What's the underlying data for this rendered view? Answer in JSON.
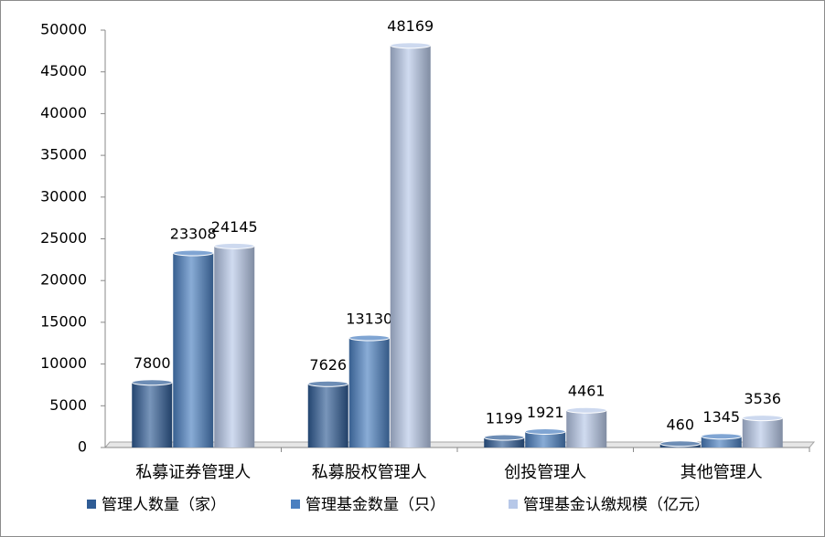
{
  "chart_data": {
    "type": "bar",
    "categories": [
      "私募证券管理人",
      "私募股权管理人",
      "创投管理人",
      "其他管理人"
    ],
    "series": [
      {
        "name": "管理人数量（家）",
        "color": "#2f5c95",
        "values": [
          7800,
          7626,
          1199,
          460
        ]
      },
      {
        "name": "管理基金数量（只）",
        "color": "#4a7fc0",
        "values": [
          23308,
          13130,
          1921,
          1345
        ]
      },
      {
        "name": "管理基金认缴规模（亿元）",
        "color": "#b7c8e8",
        "values": [
          24145,
          48169,
          4461,
          3536
        ]
      }
    ],
    "ylim": [
      0,
      50000
    ],
    "yticks": [
      0,
      5000,
      10000,
      15000,
      20000,
      25000,
      30000,
      35000,
      40000,
      45000,
      50000
    ],
    "legend": "bottom"
  }
}
